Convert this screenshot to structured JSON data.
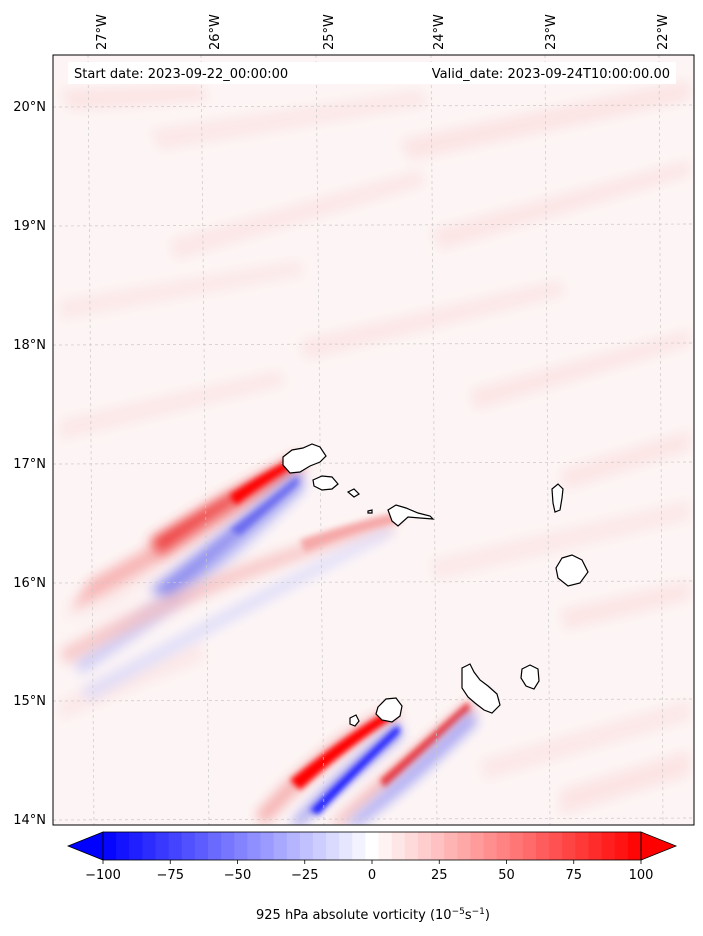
{
  "header": {
    "start_date": "Start date: 2023-09-22_00:00:00",
    "valid_date": "Valid_date: 2023-09-24T10:00:00.00"
  },
  "map": {
    "lon_labels": [
      "27°W",
      "26°W",
      "25°W",
      "24°W",
      "23°W",
      "22°W"
    ],
    "lat_labels": [
      "20°N",
      "19°N",
      "18°N",
      "17°N",
      "16°N",
      "15°N",
      "14°N"
    ],
    "field": "925 hPa absolute vorticity"
  },
  "colorbar": {
    "ticks": [
      "−100",
      "−75",
      "−50",
      "−25",
      "0",
      "25",
      "50",
      "75",
      "100"
    ],
    "label_main": "925 hPa absolute vorticity (10",
    "label_exp1": "−5",
    "label_mid": "s",
    "label_exp2": "−1",
    "label_end": ")",
    "range": [
      -100,
      100
    ],
    "levels": 41,
    "colors": {
      "negative": "#0000ff",
      "zero": "#ffffff",
      "positive": "#ff0000"
    }
  }
}
